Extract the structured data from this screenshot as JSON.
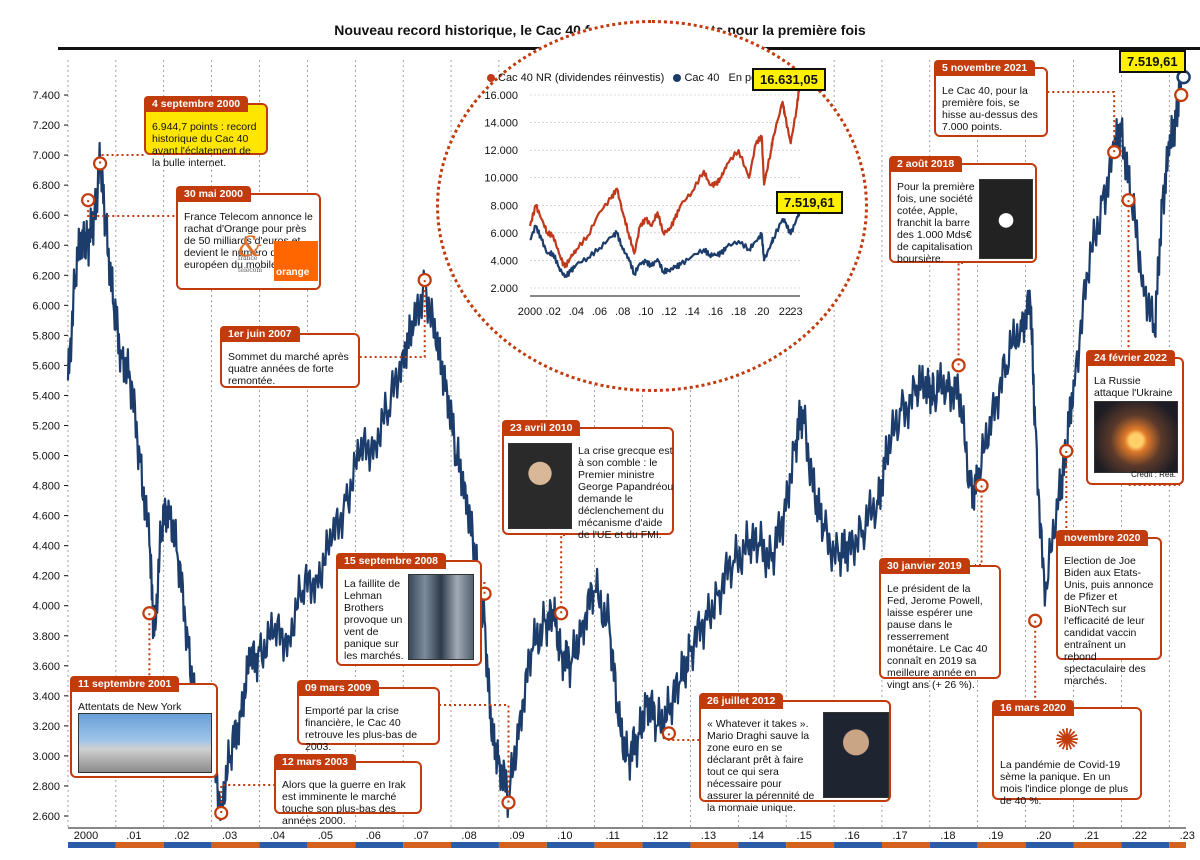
{
  "title": "Nouveau record historique, le Cac 40 franchit les 7.500 pts pour la première fois",
  "colors": {
    "accent": "#c23b0c",
    "line": "#1c3d6b",
    "nr": "#c0391b",
    "highlight": "#ffe600"
  },
  "chart_data": [
    {
      "type": "line",
      "title": "",
      "ylim": [
        2600,
        7500
      ],
      "y_ticks": [
        "2.600",
        "2.800",
        "3.000",
        "3.200",
        "3.400",
        "3.600",
        "3.800",
        "4.000",
        "4.200",
        "4.400",
        "4.600",
        "4.800",
        "5.000",
        "5.200",
        "5.400",
        "5.600",
        "5.800",
        "6.000",
        "6.200",
        "6.400",
        "6.600",
        "6.800",
        "7.000",
        "7.200",
        "7.400"
      ],
      "x_ticks": [
        "2000",
        ".01",
        ".02",
        ".03",
        ".04",
        ".05",
        ".06",
        ".07",
        ".08",
        ".09",
        ".10",
        ".11",
        ".12",
        ".13",
        ".14",
        ".15",
        ".16",
        ".17",
        ".18",
        ".19",
        ".20",
        ".21",
        ".22",
        ".23"
      ],
      "series": [
        {
          "name": "Cac 40",
          "x": [
            2000.0,
            2000.15,
            2000.3,
            2000.42,
            2000.55,
            2000.67,
            2000.8,
            2000.95,
            2001.1,
            2001.3,
            2001.5,
            2001.7,
            2001.8,
            2001.95,
            2002.1,
            2002.3,
            2002.5,
            2002.7,
            2002.85,
            2003.0,
            2003.2,
            2003.4,
            2003.6,
            2003.8,
            2004.0,
            2004.3,
            2004.6,
            2004.9,
            2005.2,
            2005.5,
            2005.8,
            2006.1,
            2006.4,
            2006.7,
            2007.0,
            2007.2,
            2007.45,
            2007.7,
            2007.9,
            2008.1,
            2008.3,
            2008.5,
            2008.7,
            2008.85,
            2009.0,
            2009.2,
            2009.45,
            2009.7,
            2009.95,
            2010.15,
            2010.3,
            2010.5,
            2010.75,
            2011.0,
            2011.3,
            2011.5,
            2011.7,
            2011.9,
            2012.1,
            2012.3,
            2012.55,
            2012.8,
            2013.0,
            2013.3,
            2013.6,
            2013.9,
            2014.2,
            2014.45,
            2014.7,
            2014.95,
            2015.2,
            2015.35,
            2015.6,
            2015.8,
            2016.1,
            2016.3,
            2016.6,
            2016.9,
            2017.1,
            2017.4,
            2017.7,
            2017.95,
            2018.1,
            2018.35,
            2018.6,
            2018.85,
            2019.0,
            2019.3,
            2019.6,
            2019.9,
            2020.1,
            2020.2,
            2020.4,
            2020.7,
            2020.85,
            2021.0,
            2021.3,
            2021.6,
            2021.85,
            2022.0,
            2022.2,
            2022.45,
            2022.7,
            2022.85,
            2023.0,
            2023.15,
            2023.25
          ],
          "values": [
            5500,
            6200,
            6500,
            6400,
            6600,
            6944,
            6500,
            6000,
            5700,
            5500,
            5000,
            4400,
            3800,
            4500,
            4700,
            4300,
            3800,
            3200,
            3300,
            3000,
            2700,
            3000,
            3300,
            3600,
            3700,
            3800,
            3800,
            4100,
            4200,
            4400,
            4700,
            5000,
            5100,
            5300,
            5700,
            5800,
            6168,
            5700,
            5500,
            5000,
            4800,
            4300,
            3900,
            3100,
            3000,
            2700,
            3300,
            3700,
            3900,
            3900,
            3700,
            3600,
            3900,
            4100,
            3900,
            3200,
            3000,
            3100,
            3400,
            3200,
            3300,
            3500,
            3700,
            3900,
            4100,
            4300,
            4400,
            4400,
            4300,
            4600,
            5100,
            5300,
            4700,
            4500,
            4300,
            4400,
            4500,
            4700,
            5000,
            5300,
            5400,
            5500,
            5400,
            5500,
            5400,
            4800,
            4800,
            5300,
            5600,
            5900,
            6000,
            5200,
            4000,
            4800,
            5000,
            5500,
            6200,
            6700,
            7000,
            7200,
            6700,
            6200,
            5800,
            6700,
            7000,
            7300,
            7519
          ]
        }
      ]
    },
    {
      "type": "line",
      "title": "",
      "ylim": [
        2000,
        16000
      ],
      "y_ticks": [
        "16.000",
        "14.000",
        "12.000",
        "10.000",
        "8.000",
        "6.000",
        "4.000",
        "2.000"
      ],
      "x_ticks": [
        "2000",
        ".02",
        ".04",
        ".06",
        ".08",
        ".10",
        ".12",
        ".14",
        ".16",
        ".18",
        ".20",
        "22",
        "23"
      ],
      "unit": "En points",
      "series": [
        {
          "name": "Cac 40 NR (dividendes réinvestis)",
          "x": [
            2000.0,
            2000.5,
            2001.0,
            2001.5,
            2002.0,
            2002.5,
            2003.0,
            2003.5,
            2004.0,
            2005.0,
            2006.0,
            2007.0,
            2007.5,
            2008.0,
            2008.5,
            2009.0,
            2009.5,
            2010.0,
            2010.5,
            2011.0,
            2011.5,
            2012.0,
            2012.5,
            2013.0,
            2014.0,
            2015.0,
            2015.5,
            2016.0,
            2016.5,
            2017.0,
            2018.0,
            2018.9,
            2019.5,
            2020.0,
            2020.2,
            2020.8,
            2021.0,
            2021.8,
            2022.0,
            2022.5,
            2023.0,
            2023.25
          ],
          "values": [
            6500,
            8000,
            7000,
            6000,
            5800,
            4500,
            3500,
            4200,
            4800,
            5800,
            7500,
            8500,
            9200,
            7500,
            6000,
            4500,
            6500,
            7000,
            6500,
            7500,
            6000,
            6200,
            7000,
            8000,
            9000,
            10500,
            9500,
            9500,
            10000,
            11000,
            12000,
            10000,
            12500,
            13000,
            9500,
            12000,
            13000,
            15500,
            14500,
            12500,
            15000,
            16631
          ]
        },
        {
          "name": "Cac 40",
          "x": [
            2000.0,
            2000.5,
            2001.0,
            2001.5,
            2002.0,
            2002.5,
            2003.0,
            2003.5,
            2004.0,
            2005.0,
            2006.0,
            2007.0,
            2007.5,
            2008.0,
            2008.5,
            2009.0,
            2009.5,
            2010.0,
            2010.5,
            2011.0,
            2011.5,
            2012.0,
            2012.5,
            2013.0,
            2014.0,
            2015.0,
            2015.5,
            2016.0,
            2016.5,
            2017.0,
            2018.0,
            2018.9,
            2019.5,
            2020.0,
            2020.2,
            2020.8,
            2021.0,
            2021.8,
            2022.0,
            2022.5,
            2023.0,
            2023.25
          ],
          "values": [
            5500,
            6500,
            5500,
            4500,
            4500,
            3500,
            2800,
            3200,
            3700,
            4200,
            4900,
            5700,
            6000,
            4800,
            4200,
            3000,
            3800,
            3900,
            3600,
            4100,
            3200,
            3300,
            3500,
            3700,
            4300,
            4800,
            4400,
            4400,
            4500,
            5000,
            5400,
            4800,
            5400,
            5900,
            4000,
            5200,
            5600,
            7000,
            6800,
            5900,
            7000,
            7519
          ]
        }
      ]
    }
  ],
  "annotations": [
    {
      "id": "a2000sep",
      "tag": "4 septembre 2000",
      "text": "6.944,7 points : record historique du Cac 40 avant l'éclatement de la bulle internet."
    },
    {
      "id": "a2000may",
      "tag": "30 mai 2000",
      "text": "France Telecom annonce le rachat d'Orange pour près de 50 milliards d'euros et devient le numéro deux européen du mobile.",
      "logo1": "france telecom",
      "logo2": "orange"
    },
    {
      "id": "a2001",
      "tag": "11 septembre 2001",
      "text": "Attentats de New York"
    },
    {
      "id": "a2003",
      "tag": "12 mars 2003",
      "text": "Alors que la guerre en Irak est imminente le marché touche son plus-bas des années 2000."
    },
    {
      "id": "a2007",
      "tag": "1er juin 2007",
      "text": "Sommet du marché après quatre années de forte remontée."
    },
    {
      "id": "a2008",
      "tag": "15 septembre 2008",
      "text": "La faillite de Lehman Brothers provoque un vent de panique sur les marchés."
    },
    {
      "id": "a2009",
      "tag": "09 mars 2009",
      "text": "Emporté par la crise financière, le Cac 40 retrouve les plus-bas de 2003."
    },
    {
      "id": "a2010",
      "tag": "23 avril 2010",
      "text": "La crise grecque est à son comble : le Premier ministre George Papandréou demande le déclenchement du mécanisme d'aide de l'UE et du FMI."
    },
    {
      "id": "a2012",
      "tag": "26 juillet 2012",
      "text": "« Whatever it takes ». Mario Draghi sauve la zone euro en se déclarant prêt à faire tout ce qui sera nécessaire pour assurer la pérennité de la monnaie unique."
    },
    {
      "id": "a2018",
      "tag": "2 août 2018",
      "text": "Pour la première fois, une société cotée, Apple, franchit la barre des 1.000 Mds€ de capitalisation boursière."
    },
    {
      "id": "a2019",
      "tag": "30 janvier 2019",
      "text": "Le président de la Fed, Jerome Powell, laisse espérer une pause dans le resserrement monétaire. Le Cac 40 connaît en 2019 sa meilleure année en vingt ans (+ 26 %)."
    },
    {
      "id": "a2020mar",
      "tag": "16 mars 2020",
      "text": "La pandémie de Covid-19 sème la panique. En un mois l'indice plonge de plus de 40 %."
    },
    {
      "id": "a2020nov",
      "tag": "novembre 2020",
      "text": "Election de Joe Biden aux Etats-Unis, puis annonce de Pfizer et BioNTech sur l'efficacité de leur candidat vaccin entraînent un rebond spectaculaire des marchés."
    },
    {
      "id": "a2021",
      "tag": "5 novembre 2021",
      "text": "Le Cac 40, pour la première fois, se hisse au-dessus des 7.000 points."
    },
    {
      "id": "a2022",
      "tag": "24 février 2022",
      "text": "La Russie attaque l'Ukraine",
      "credit": "Crédit : Réa."
    }
  ],
  "callouts": {
    "main_last": "7.519,61",
    "inset_nr": "16.631,05",
    "inset_cac": "7.519,61"
  },
  "inset_legend": {
    "nr": "Cac 40 NR (dividendes réinvestis)",
    "cac": "Cac 40",
    "unit": "En points"
  }
}
